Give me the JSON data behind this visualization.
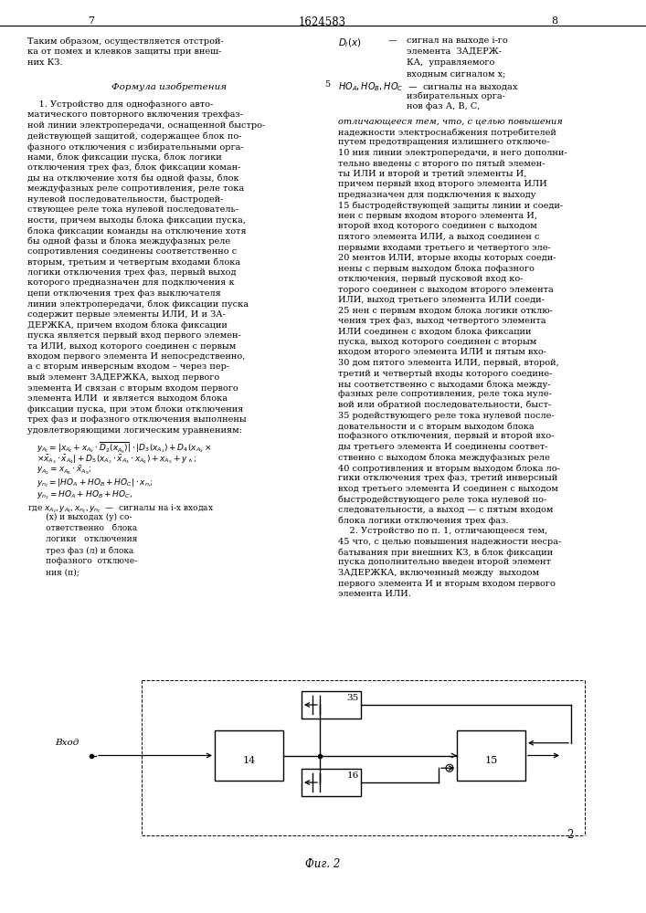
{
  "page_width": 7.07,
  "page_height": 10.0,
  "bg_color": "#ffffff",
  "top_left_num": "7",
  "top_center_num": "1624583",
  "top_right_num": "8"
}
